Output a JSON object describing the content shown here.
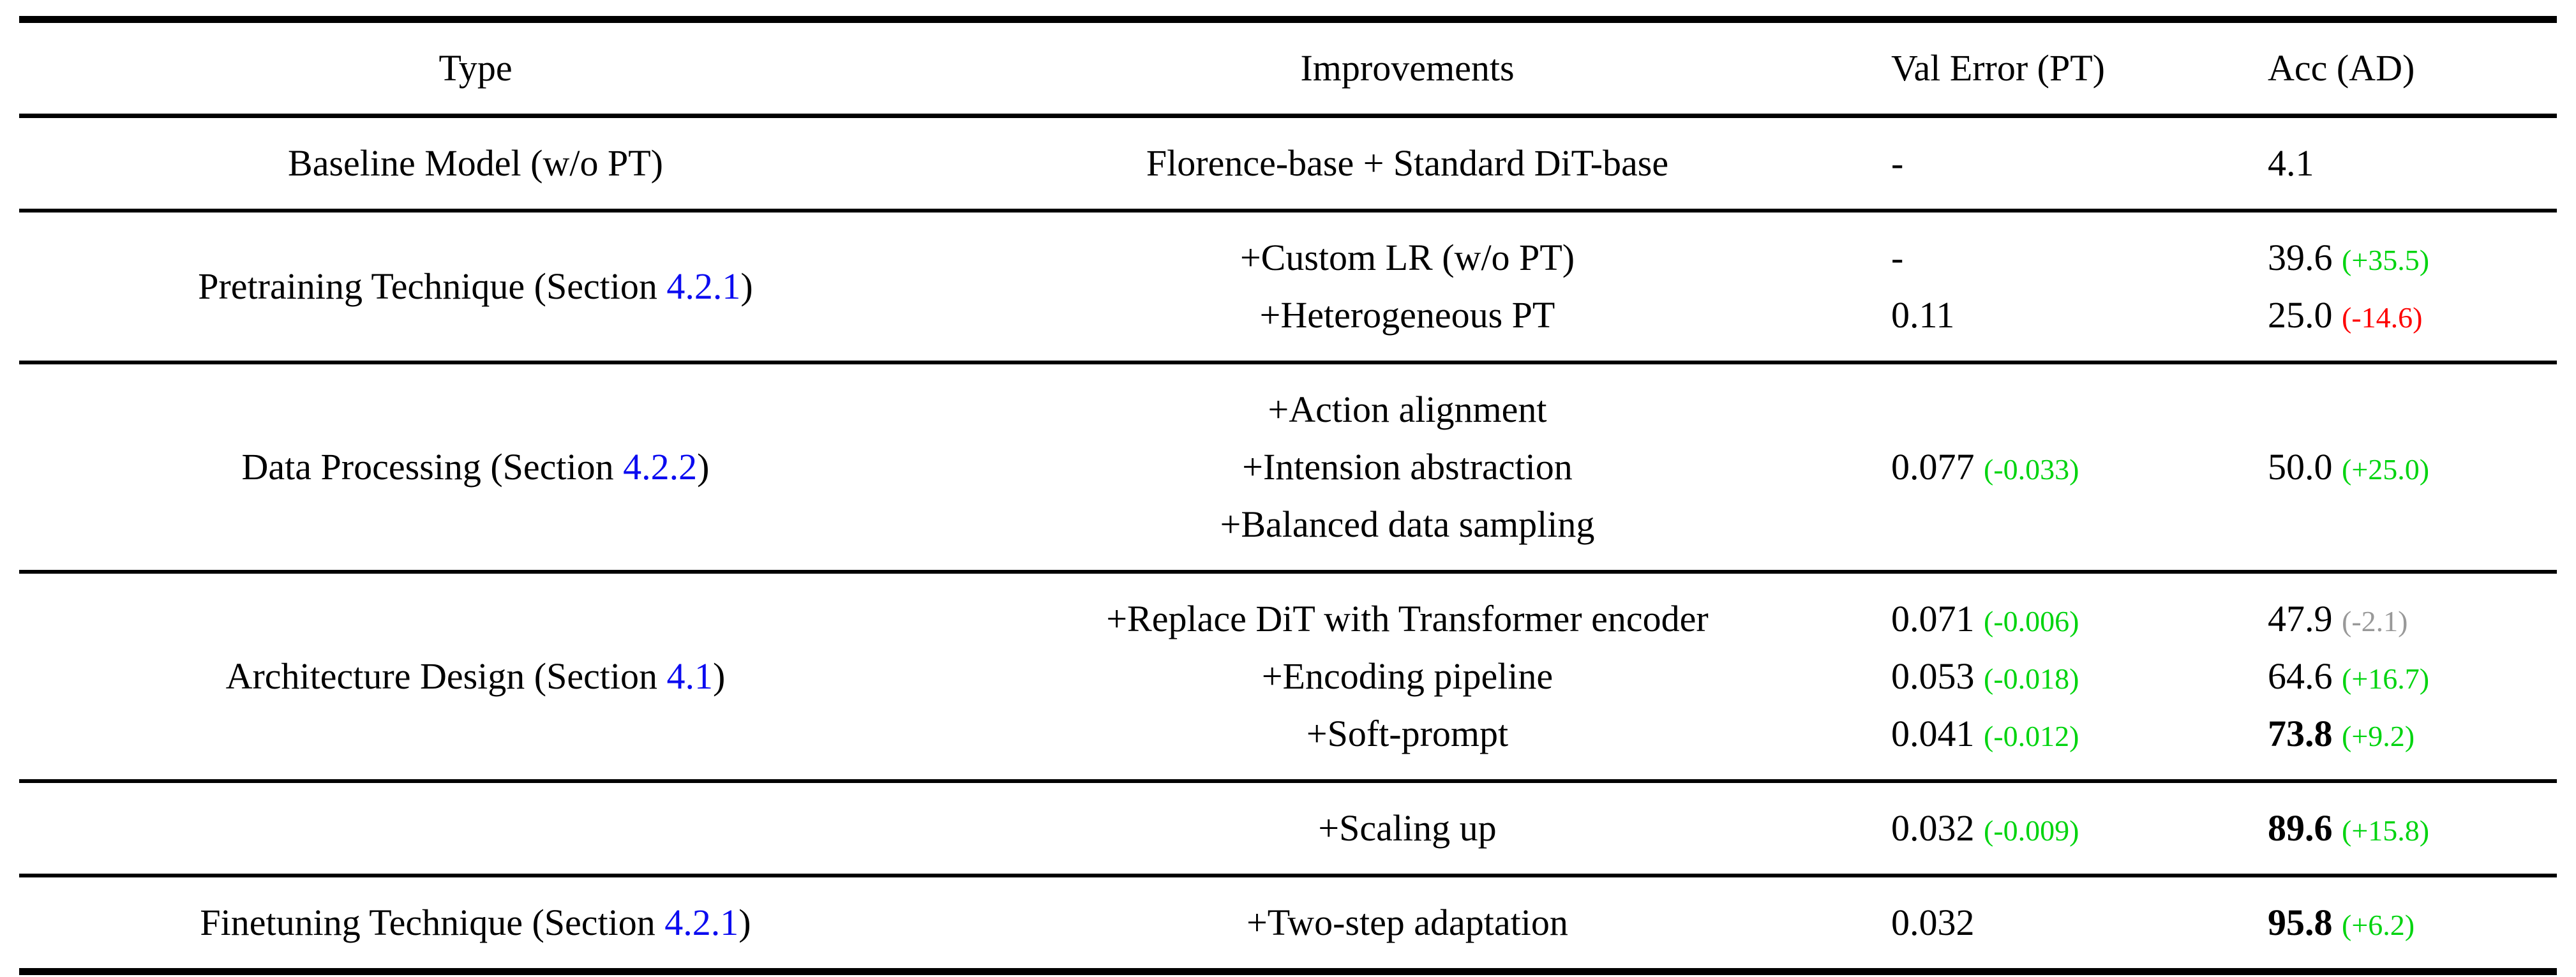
{
  "table": {
    "columns": [
      {
        "id": "type",
        "label": "Type",
        "align": "center"
      },
      {
        "id": "improvements",
        "label": "Improvements",
        "align": "center"
      },
      {
        "id": "val_error",
        "label": "Val Error (PT)",
        "align": "left"
      },
      {
        "id": "acc",
        "label": "Acc (AD)",
        "align": "left"
      }
    ],
    "colors": {
      "pos": "#00d40f",
      "neg": "#fe0000",
      "neut": "#999999",
      "link": "#0b0bf0"
    },
    "rows": [
      {
        "type": {
          "text": "Baseline Model (w/o PT)"
        },
        "improvements": [
          "Florence-base + Standard DiT-base"
        ],
        "val_error": [
          {
            "value": "-"
          }
        ],
        "acc": [
          {
            "value": "4.1"
          }
        ]
      },
      {
        "type": {
          "text": "Pretraining Technique (Section ",
          "link": "4.2.1",
          "suffix": ")"
        },
        "improvements": [
          "+Custom LR (w/o PT)",
          "+Heterogeneous PT"
        ],
        "val_error": [
          {
            "value": "-"
          },
          {
            "value": "0.11"
          }
        ],
        "acc": [
          {
            "value": "39.6",
            "delta": "(+35.5)",
            "tone": "pos"
          },
          {
            "value": "25.0",
            "delta": "(-14.6)",
            "tone": "neg"
          }
        ]
      },
      {
        "type": {
          "text": "Data Processing (Section ",
          "link": "4.2.2",
          "suffix": ")"
        },
        "improvements": [
          "+Action alignment",
          "+Intension abstraction",
          "+Balanced data sampling"
        ],
        "val_error": [
          {
            "value": "0.077",
            "delta": "(-0.033)",
            "tone": "pos"
          }
        ],
        "acc": [
          {
            "value": "50.0",
            "delta": "(+25.0)",
            "tone": "pos"
          }
        ]
      },
      {
        "type": {
          "text": "Architecture Design (Section ",
          "link": "4.1",
          "suffix": ")"
        },
        "improvements": [
          "+Replace DiT with Transformer encoder",
          "+Encoding pipeline",
          "+Soft-prompt"
        ],
        "val_error": [
          {
            "value": "0.071",
            "delta": "(-0.006)",
            "tone": "pos"
          },
          {
            "value": "0.053",
            "delta": "(-0.018)",
            "tone": "pos"
          },
          {
            "value": "0.041",
            "delta": "(-0.012)",
            "tone": "pos"
          }
        ],
        "acc": [
          {
            "value": "47.9",
            "delta": "(-2.1)",
            "tone": "neut"
          },
          {
            "value": "64.6",
            "delta": "(+16.7)",
            "tone": "pos"
          },
          {
            "value": "73.8",
            "bold": true,
            "delta": "(+9.2)",
            "tone": "pos"
          }
        ]
      },
      {
        "type": {
          "text": ""
        },
        "improvements": [
          "+Scaling up"
        ],
        "val_error": [
          {
            "value": "0.032",
            "delta": "(-0.009)",
            "tone": "pos"
          }
        ],
        "acc": [
          {
            "value": "89.6",
            "bold": true,
            "delta": "(+15.8)",
            "tone": "pos"
          }
        ]
      },
      {
        "type": {
          "text": "Finetuning Technique (Section ",
          "link": "4.2.1",
          "suffix": ")"
        },
        "improvements": [
          "+Two-step adaptation"
        ],
        "val_error": [
          {
            "value": "0.032"
          }
        ],
        "acc": [
          {
            "value": "95.8",
            "bold": true,
            "delta": "(+6.2)",
            "tone": "pos"
          }
        ]
      }
    ]
  }
}
